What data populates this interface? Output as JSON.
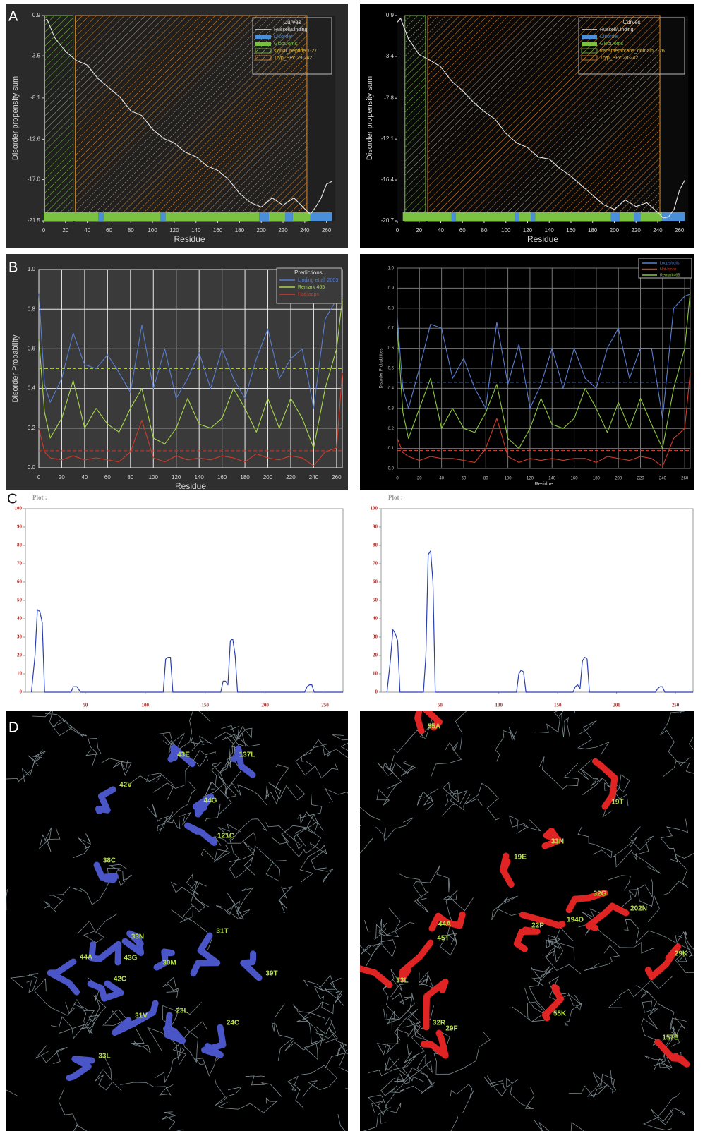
{
  "panel_labels": [
    "A",
    "B",
    "C",
    "D"
  ],
  "chart_data": [
    {
      "type": "line",
      "ylabel": "Disorder propensity sum",
      "xlabel": "Residue",
      "legend_title": "Curves",
      "legend": "upper right",
      "x": [
        0,
        3,
        10,
        20,
        30,
        40,
        50,
        60,
        70,
        80,
        90,
        100,
        110,
        120,
        130,
        140,
        150,
        160,
        170,
        180,
        190,
        200,
        210,
        220,
        230,
        240,
        245,
        250,
        255,
        260,
        265
      ],
      "series": [
        {
          "name": "Russell/Linding",
          "color": "#e6e6e6",
          "values": [
            0.3,
            0.5,
            -1.5,
            -3,
            -4,
            -4.5,
            -6,
            -7,
            -8,
            -9.5,
            -10,
            -11.5,
            -12.5,
            -13,
            -14,
            -14.5,
            -15.5,
            -16,
            -17,
            -18.5,
            -19.5,
            -20,
            -19,
            -19.8,
            -19,
            -20.2,
            -20.8,
            -20,
            -19,
            -17.5,
            -17.2
          ]
        }
      ],
      "bar_segments": [
        {
          "name": "Disorder",
          "color": "#4a8fd9",
          "segments": [
            [
              50,
              55
            ],
            [
              107,
              112
            ],
            [
              198,
              207
            ],
            [
              222,
              229
            ],
            [
              245,
              265
            ]
          ]
        },
        {
          "name": "GlobDoms",
          "color": "#7cc242",
          "segments": [
            [
              0,
              50
            ],
            [
              55,
              107
            ],
            [
              112,
              198
            ],
            [
              207,
              222
            ],
            [
              229,
              245
            ]
          ]
        }
      ],
      "regions": [
        {
          "name": "signal_peptide 1-27",
          "color": "#7cc242",
          "start": 1,
          "end": 27
        },
        {
          "name": "Tryp_SPc 29-242",
          "color": "#e08a2a",
          "start": 29,
          "end": 242
        }
      ],
      "xlim": [
        0,
        268
      ],
      "ylim": [
        -21.5,
        0.9
      ],
      "xticks": [
        0,
        20,
        40,
        60,
        80,
        100,
        120,
        140,
        160,
        180,
        200,
        220,
        240,
        260
      ],
      "yticks": [
        0.9,
        -3.5,
        -8.1,
        -12.6,
        {
          "value": -17,
          "label": "-17.0"
        },
        -21.5
      ]
    },
    {
      "type": "line",
      "ylabel": "Disorder propensity sum",
      "xlabel": "Residue",
      "legend_title": "Curves",
      "legend": "upper right",
      "x": [
        0,
        3,
        10,
        20,
        30,
        40,
        50,
        60,
        70,
        80,
        90,
        100,
        110,
        120,
        130,
        140,
        150,
        160,
        170,
        180,
        190,
        200,
        210,
        220,
        230,
        240,
        245,
        250,
        255,
        260,
        265
      ],
      "series": [
        {
          "name": "Russell/Linding",
          "color": "#e6e6e6",
          "values": [
            0.2,
            0.6,
            -1.5,
            -3.2,
            -3.8,
            -4.5,
            -6,
            -7,
            -8.2,
            -9.2,
            -10,
            -11.5,
            -12.5,
            -13,
            -14,
            -14.2,
            -15.2,
            -16,
            -17,
            -18,
            -19,
            -19.5,
            -18.5,
            -19.2,
            -18.8,
            -19.8,
            -20.4,
            -20.3,
            -19.5,
            -17.5,
            -16.4
          ]
        }
      ],
      "bar_segments": [
        {
          "name": "Disorder",
          "color": "#4a8fd9",
          "segments": [
            [
              50,
              54
            ],
            [
              108,
              112
            ],
            [
              123,
              127
            ],
            [
              197,
              205
            ],
            [
              218,
              224
            ],
            [
              244,
              265
            ]
          ]
        },
        {
          "name": "GlobDoms",
          "color": "#7cc242",
          "segments": [
            [
              5,
              50
            ],
            [
              54,
              108
            ],
            [
              112,
              123
            ],
            [
              127,
              197
            ],
            [
              205,
              218
            ],
            [
              224,
              244
            ]
          ]
        }
      ],
      "regions": [
        {
          "name": "transmembrane_domain 7-26",
          "color": "#7cc242",
          "start": 7,
          "end": 26
        },
        {
          "name": "Tryp_SPc 28-242",
          "color": "#e08a2a",
          "start": 28,
          "end": 242
        }
      ],
      "xlim": [
        0,
        268
      ],
      "ylim": [
        -20.7,
        0.9
      ],
      "xticks": [
        0,
        20,
        40,
        60,
        80,
        100,
        120,
        140,
        160,
        180,
        200,
        220,
        240,
        260
      ],
      "yticks": [
        0.9,
        -3.4,
        -7.8,
        -12.1,
        -16.4,
        -20.7
      ]
    },
    {
      "type": "line",
      "ylabel": "Disorder Probability",
      "xlabel": "Residue",
      "legend_title": "Predictions:",
      "legend": "upper right",
      "grid": true,
      "x": [
        0,
        5,
        10,
        20,
        30,
        40,
        50,
        60,
        70,
        80,
        90,
        100,
        110,
        120,
        130,
        140,
        150,
        160,
        170,
        180,
        190,
        200,
        210,
        220,
        230,
        240,
        250,
        260,
        265
      ],
      "series": [
        {
          "name": "Linding et al. 2003",
          "color": "#5a7fd0",
          "values": [
            0.88,
            0.42,
            0.33,
            0.45,
            0.68,
            0.52,
            0.5,
            0.57,
            0.48,
            0.38,
            0.72,
            0.4,
            0.6,
            0.35,
            0.45,
            0.58,
            0.4,
            0.6,
            0.45,
            0.35,
            0.55,
            0.7,
            0.45,
            0.55,
            0.6,
            0.3,
            0.75,
            0.85,
            0.86
          ]
        },
        {
          "name": "Remark 465",
          "color": "#a8d84a",
          "values": [
            0.65,
            0.28,
            0.15,
            0.25,
            0.44,
            0.2,
            0.3,
            0.22,
            0.18,
            0.3,
            0.4,
            0.15,
            0.12,
            0.2,
            0.35,
            0.22,
            0.2,
            0.25,
            0.4,
            0.3,
            0.18,
            0.35,
            0.2,
            0.35,
            0.25,
            0.1,
            0.4,
            0.6,
            0.85
          ]
        },
        {
          "name": "Hot-loops",
          "color": "#d23a2a",
          "values": [
            0.2,
            0.08,
            0.05,
            0.04,
            0.06,
            0.04,
            0.05,
            0.04,
            0.03,
            0.08,
            0.24,
            0.05,
            0.03,
            0.06,
            0.04,
            0.05,
            0.04,
            0.06,
            0.05,
            0.03,
            0.07,
            0.05,
            0.04,
            0.06,
            0.05,
            0.01,
            0.08,
            0.1,
            0.48
          ]
        }
      ],
      "thresholds": [
        {
          "value": 0.5,
          "color": "#a8c83a"
        },
        {
          "value": 0.086,
          "color": "#d23a2a"
        }
      ],
      "xlim": [
        0,
        265
      ],
      "ylim": [
        0,
        1
      ],
      "xticks": [
        0,
        20,
        40,
        60,
        80,
        100,
        120,
        140,
        160,
        180,
        200,
        220,
        240,
        260
      ],
      "yticks": [
        {
          "value": 0,
          "label": "0.0"
        },
        0.2,
        0.4,
        0.6,
        0.8,
        {
          "value": 1,
          "label": "1.0"
        }
      ]
    },
    {
      "type": "line",
      "ylabel": "Disorder Probabilities",
      "xlabel": "Residue",
      "legend": "upper right",
      "grid": true,
      "x": [
        0,
        5,
        10,
        20,
        30,
        40,
        50,
        60,
        70,
        80,
        90,
        100,
        110,
        120,
        130,
        140,
        150,
        160,
        170,
        180,
        190,
        200,
        210,
        220,
        230,
        240,
        250,
        260,
        265
      ],
      "series": [
        {
          "name": "Loops/coils",
          "color": "#5a7fd0",
          "values": [
            0.75,
            0.4,
            0.3,
            0.5,
            0.72,
            0.7,
            0.45,
            0.55,
            0.4,
            0.3,
            0.73,
            0.42,
            0.62,
            0.3,
            0.42,
            0.6,
            0.4,
            0.6,
            0.45,
            0.4,
            0.6,
            0.7,
            0.45,
            0.6,
            0.6,
            0.25,
            0.8,
            0.86,
            0.87
          ]
        },
        {
          "name": "Hot-loops",
          "color": "#d23a2a",
          "values": [
            0.15,
            0.08,
            0.06,
            0.04,
            0.06,
            0.05,
            0.05,
            0.04,
            0.03,
            0.1,
            0.25,
            0.06,
            0.03,
            0.05,
            0.04,
            0.05,
            0.04,
            0.05,
            0.05,
            0.03,
            0.06,
            0.05,
            0.04,
            0.06,
            0.05,
            0.01,
            0.15,
            0.2,
            0.48
          ]
        },
        {
          "name": "Remark465",
          "color": "#8cc83a",
          "values": [
            0.7,
            0.28,
            0.15,
            0.3,
            0.45,
            0.2,
            0.3,
            0.2,
            0.18,
            0.28,
            0.42,
            0.15,
            0.1,
            0.2,
            0.35,
            0.22,
            0.2,
            0.25,
            0.4,
            0.3,
            0.18,
            0.33,
            0.2,
            0.35,
            0.22,
            0.1,
            0.4,
            0.6,
            0.88
          ]
        }
      ],
      "thresholds": [
        {
          "value": 0.43,
          "color": "#5a7fd0"
        },
        {
          "value": 0.09,
          "color": "#d23a2a"
        }
      ],
      "xlim": [
        0,
        265
      ],
      "ylim": [
        0,
        1
      ],
      "xticks": [
        0,
        20,
        40,
        60,
        80,
        100,
        120,
        140,
        160,
        180,
        200,
        220,
        240,
        260
      ],
      "yticks": [
        {
          "value": 0,
          "label": "0.0"
        },
        0.1,
        0.2,
        0.3,
        0.4,
        0.5,
        0.6,
        0.7,
        0.8,
        0.9,
        {
          "value": 1,
          "label": "1.0"
        }
      ]
    },
    {
      "type": "line",
      "title": "Plot :",
      "x": [
        5,
        8,
        10,
        12,
        14,
        16,
        38,
        40,
        43,
        46,
        48,
        115,
        117,
        119,
        121,
        123,
        163,
        165,
        167,
        169,
        171,
        173,
        175,
        177,
        179,
        233,
        235,
        237,
        239,
        241,
        265
      ],
      "series": [
        {
          "color": "#2a3fb0",
          "values": [
            0,
            20,
            45,
            44,
            38,
            0,
            0,
            3,
            3,
            0,
            0,
            0,
            18,
            19,
            19,
            0,
            0,
            6,
            6,
            4,
            28,
            29,
            20,
            0,
            0,
            0,
            3,
            4,
            4,
            0,
            0
          ]
        }
      ],
      "xlim": [
        0,
        265
      ],
      "ylim": [
        0,
        100
      ],
      "xticks": [
        50,
        100,
        150,
        200,
        250
      ],
      "yticks": [
        0,
        10,
        20,
        30,
        40,
        50,
        60,
        70,
        80,
        90,
        100
      ]
    },
    {
      "type": "line",
      "title": "Plot :",
      "x": [
        5,
        8,
        10,
        12,
        14,
        16,
        36,
        38,
        40,
        42,
        44,
        46,
        115,
        117,
        119,
        121,
        123,
        163,
        165,
        167,
        169,
        171,
        173,
        175,
        177,
        179,
        233,
        235,
        237,
        239,
        241,
        265
      ],
      "series": [
        {
          "color": "#2a3fb0",
          "values": [
            0,
            18,
            34,
            32,
            28,
            0,
            0,
            20,
            75,
            77,
            60,
            0,
            0,
            10,
            12,
            11,
            0,
            0,
            3,
            4,
            2,
            17,
            19,
            18,
            0,
            0,
            0,
            2,
            3,
            3,
            0,
            0
          ]
        }
      ],
      "xlim": [
        0,
        265
      ],
      "ylim": [
        0,
        100
      ],
      "xticks": [
        50,
        100,
        150,
        200,
        250
      ],
      "yticks": [
        0,
        10,
        20,
        30,
        40,
        50,
        60,
        70,
        80,
        90,
        100
      ]
    }
  ],
  "structures": [
    {
      "color": "#4a55c8",
      "labels": [
        "43E",
        "137L",
        "42V",
        "44G",
        "121C",
        "38C",
        "33N",
        "31T",
        "44A",
        "43G",
        "30M",
        "39T",
        "42C",
        "31V",
        "23L",
        "24C",
        "33L"
      ]
    },
    {
      "color": "#e02424",
      "labels": [
        "55A",
        "19T",
        "33N",
        "19E",
        "32G",
        "202N",
        "44A",
        "22P",
        "194D",
        "45T",
        "29K",
        "33L",
        "55K",
        "32R",
        "29F",
        "157E"
      ]
    }
  ]
}
